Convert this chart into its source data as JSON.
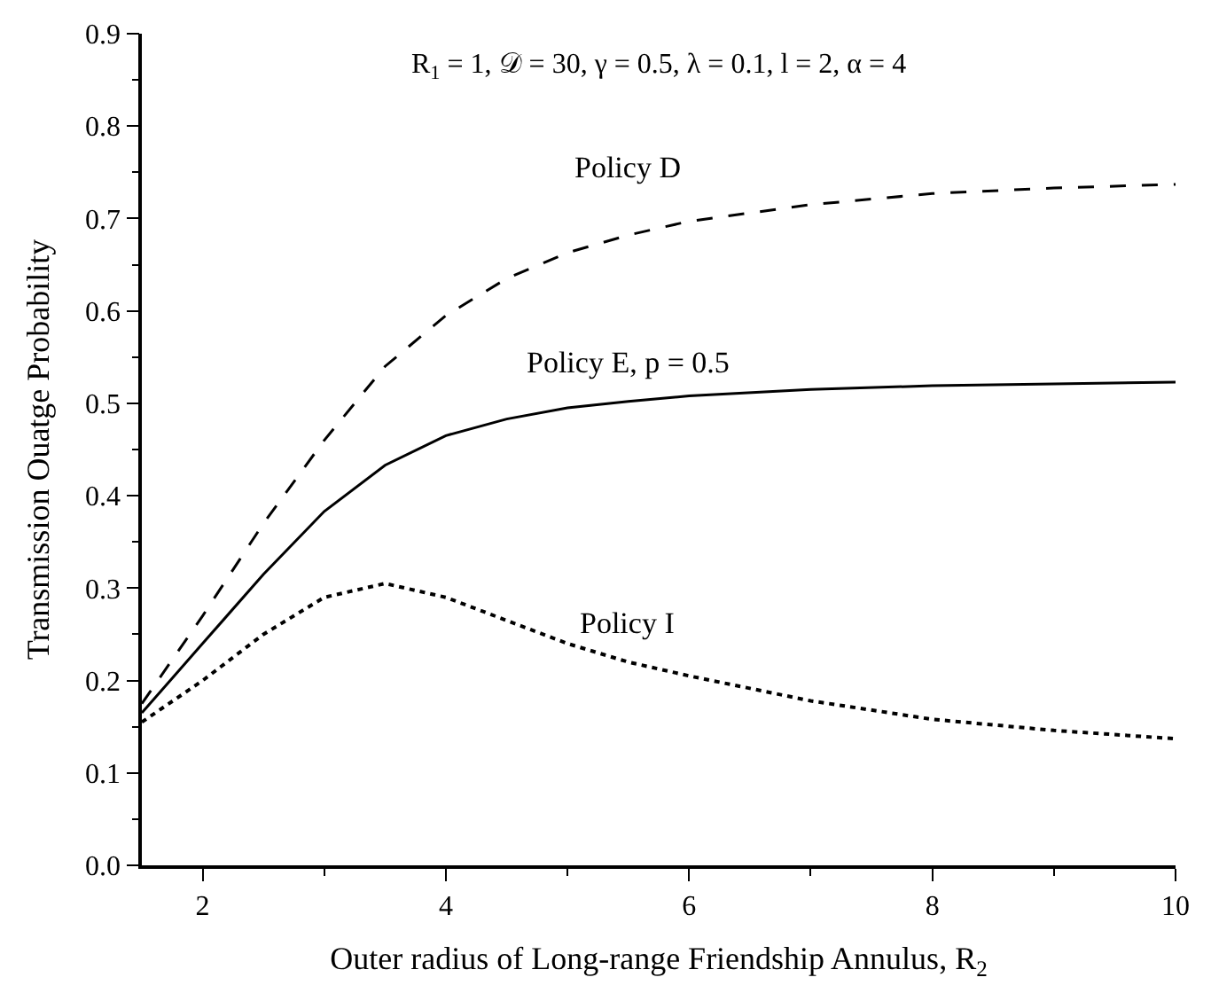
{
  "chart_data": {
    "type": "line",
    "xlabel": "Outer radius of Long-range Friendship Annulus, R$_{2}$",
    "ylabel": "Transmission Ouatge Probability",
    "annotations": [
      "R$_{1}$ = 1, 𝒟 = 30, γ = 0.5, λ = 0.1, l = 2, α = 4"
    ],
    "x": [
      1.5,
      2,
      2.5,
      3,
      3.5,
      4,
      4.5,
      5,
      5.5,
      6,
      7,
      8,
      9,
      10
    ],
    "series": [
      {
        "name": "Policy D",
        "color": "#000000",
        "line_style": "dashed",
        "values": [
          0.175,
          0.27,
          0.37,
          0.46,
          0.54,
          0.595,
          0.635,
          0.663,
          0.682,
          0.697,
          0.715,
          0.727,
          0.733,
          0.737
        ]
      },
      {
        "name": "Policy E, p = 0.5",
        "color": "#000000",
        "line_style": "solid",
        "values": [
          0.165,
          0.24,
          0.315,
          0.383,
          0.433,
          0.465,
          0.483,
          0.495,
          0.502,
          0.508,
          0.515,
          0.519,
          0.521,
          0.523
        ]
      },
      {
        "name": "Policy I",
        "color": "#000000",
        "line_style": "dotted",
        "values": [
          0.155,
          0.2,
          0.25,
          0.29,
          0.305,
          0.29,
          0.265,
          0.24,
          0.22,
          0.205,
          0.178,
          0.158,
          0.146,
          0.137
        ]
      }
    ],
    "xlim": [
      1.5,
      10
    ],
    "xticks": [
      2,
      {
        "value": 3,
        "label": null
      },
      4,
      {
        "value": 5,
        "label": null
      },
      6,
      {
        "value": 7,
        "label": null
      },
      8,
      {
        "value": 9,
        "label": null
      },
      10
    ],
    "ylim": [
      0,
      0.9
    ],
    "yticks": [
      {
        "value": 0,
        "label": "0.0"
      },
      {
        "value": 0.05,
        "label": null
      },
      0.1,
      {
        "value": 0.15,
        "label": null
      },
      0.2,
      {
        "value": 0.25,
        "label": null
      },
      0.3,
      {
        "value": 0.35,
        "label": null
      },
      0.4,
      {
        "value": 0.45,
        "label": null
      },
      0.5,
      {
        "value": 0.55,
        "label": null
      },
      0.6,
      {
        "value": 0.65,
        "label": null
      },
      0.7,
      {
        "value": 0.75,
        "label": null
      },
      0.8,
      {
        "value": 0.85,
        "label": null
      },
      0.9
    ],
    "legend": false
  }
}
